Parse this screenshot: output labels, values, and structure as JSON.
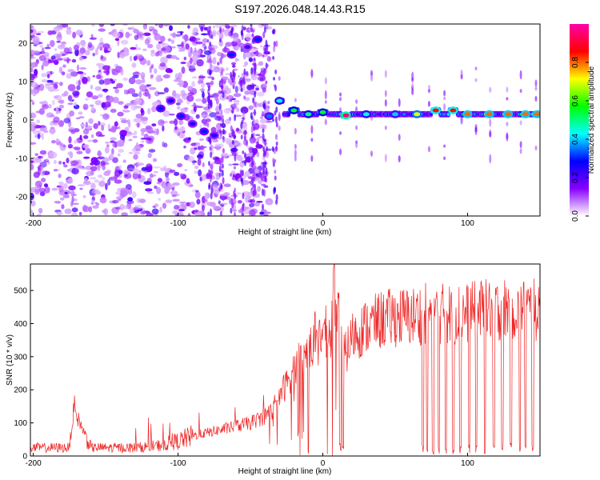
{
  "title": "S197.2026.048.14.43.R15",
  "chart_data": [
    {
      "type": "heatmap",
      "title": "S197.2026.048.14.43.R15",
      "xlabel": "Height of straight line (km)",
      "ylabel": "Frequency (Hz)",
      "xlim": [
        -202,
        150
      ],
      "ylim": [
        -25,
        25
      ],
      "xticks": [
        -200,
        -100,
        0,
        100
      ],
      "yticks": [
        20,
        10,
        0,
        -10,
        -20
      ],
      "colorbar": {
        "label": "Normalized spectral amplitude",
        "range": [
          0,
          1
        ],
        "ticks": [
          "0.0",
          "0.2",
          "0.4",
          "0.6",
          "0.8"
        ],
        "tick_values": [
          0,
          0.2,
          0.4,
          0.6,
          0.8
        ],
        "colormap": [
          "#ffffff",
          "#8800ff",
          "#0000ff",
          "#00ffff",
          "#00ff00",
          "#ffff00",
          "#ff0000",
          "#ff00aa"
        ]
      },
      "ridge": [
        {
          "x": -112,
          "y": 3,
          "v": 0.3
        },
        {
          "x": -105,
          "y": 5,
          "v": 0.25
        },
        {
          "x": -98,
          "y": 1,
          "v": 0.3
        },
        {
          "x": -90,
          "y": -1,
          "v": 0.25
        },
        {
          "x": -82,
          "y": -3,
          "v": 0.3
        },
        {
          "x": -75,
          "y": -4,
          "v": 0.25
        },
        {
          "x": -63,
          "y": 17,
          "v": 0.3
        },
        {
          "x": -52,
          "y": 19,
          "v": 0.2
        },
        {
          "x": -45,
          "y": 21,
          "v": 0.3
        },
        {
          "x": -37,
          "y": 1,
          "v": 0.35
        },
        {
          "x": -30,
          "y": 5,
          "v": 0.45
        },
        {
          "x": -20,
          "y": 2.5,
          "v": 0.55
        },
        {
          "x": -10,
          "y": 1.5,
          "v": 0.5
        },
        {
          "x": 0,
          "y": 2,
          "v": 0.55
        },
        {
          "x": 16,
          "y": 1.2,
          "v": 0.95
        },
        {
          "x": 30,
          "y": 1.5,
          "v": 0.45
        },
        {
          "x": 50,
          "y": 1.5,
          "v": 0.4
        },
        {
          "x": 65,
          "y": 1.5,
          "v": 0.7
        },
        {
          "x": 78,
          "y": 2.5,
          "v": 0.85
        },
        {
          "x": 90,
          "y": 2.5,
          "v": 0.85
        },
        {
          "x": 100,
          "y": 1.5,
          "v": 0.8
        },
        {
          "x": 115,
          "y": 1.5,
          "v": 0.8
        },
        {
          "x": 128,
          "y": 1.5,
          "v": 0.8
        },
        {
          "x": 140,
          "y": 1.5,
          "v": 0.8
        },
        {
          "x": 148,
          "y": 1.5,
          "v": 0.8
        }
      ]
    },
    {
      "type": "line",
      "xlabel": "Height of straight line (km)",
      "ylabel": "SNR (10 * v/v)",
      "xlim": [
        -202,
        150
      ],
      "ylim": [
        0,
        580
      ],
      "xticks": [
        -200,
        -100,
        0,
        100
      ],
      "yticks": [
        0,
        100,
        200,
        300,
        400,
        500
      ],
      "color": "#ee2222",
      "series": [
        {
          "name": "SNR",
          "x": [
            -202,
            -190,
            -175,
            -172,
            -160,
            -150,
            -130,
            -115,
            -100,
            -90,
            -80,
            -70,
            -60,
            -50,
            -40,
            -35,
            -30,
            -25,
            -20,
            -15,
            -10,
            -5,
            0,
            5,
            8,
            12,
            15,
            20,
            30,
            40,
            50,
            60,
            70,
            80,
            90,
            100,
            110,
            120,
            130,
            140,
            150
          ],
          "y": [
            25,
            25,
            25,
            140,
            25,
            25,
            25,
            30,
            45,
            60,
            70,
            80,
            90,
            100,
            120,
            140,
            180,
            220,
            260,
            290,
            320,
            340,
            370,
            380,
            520,
            380,
            300,
            360,
            390,
            410,
            420,
            420,
            430,
            430,
            430,
            430,
            440,
            440,
            450,
            440,
            440
          ]
        }
      ],
      "dropouts_x": [
        12,
        14,
        69,
        72,
        76,
        80,
        85,
        90,
        95,
        101,
        106,
        112,
        118,
        124,
        130,
        136,
        140,
        145
      ]
    }
  ]
}
